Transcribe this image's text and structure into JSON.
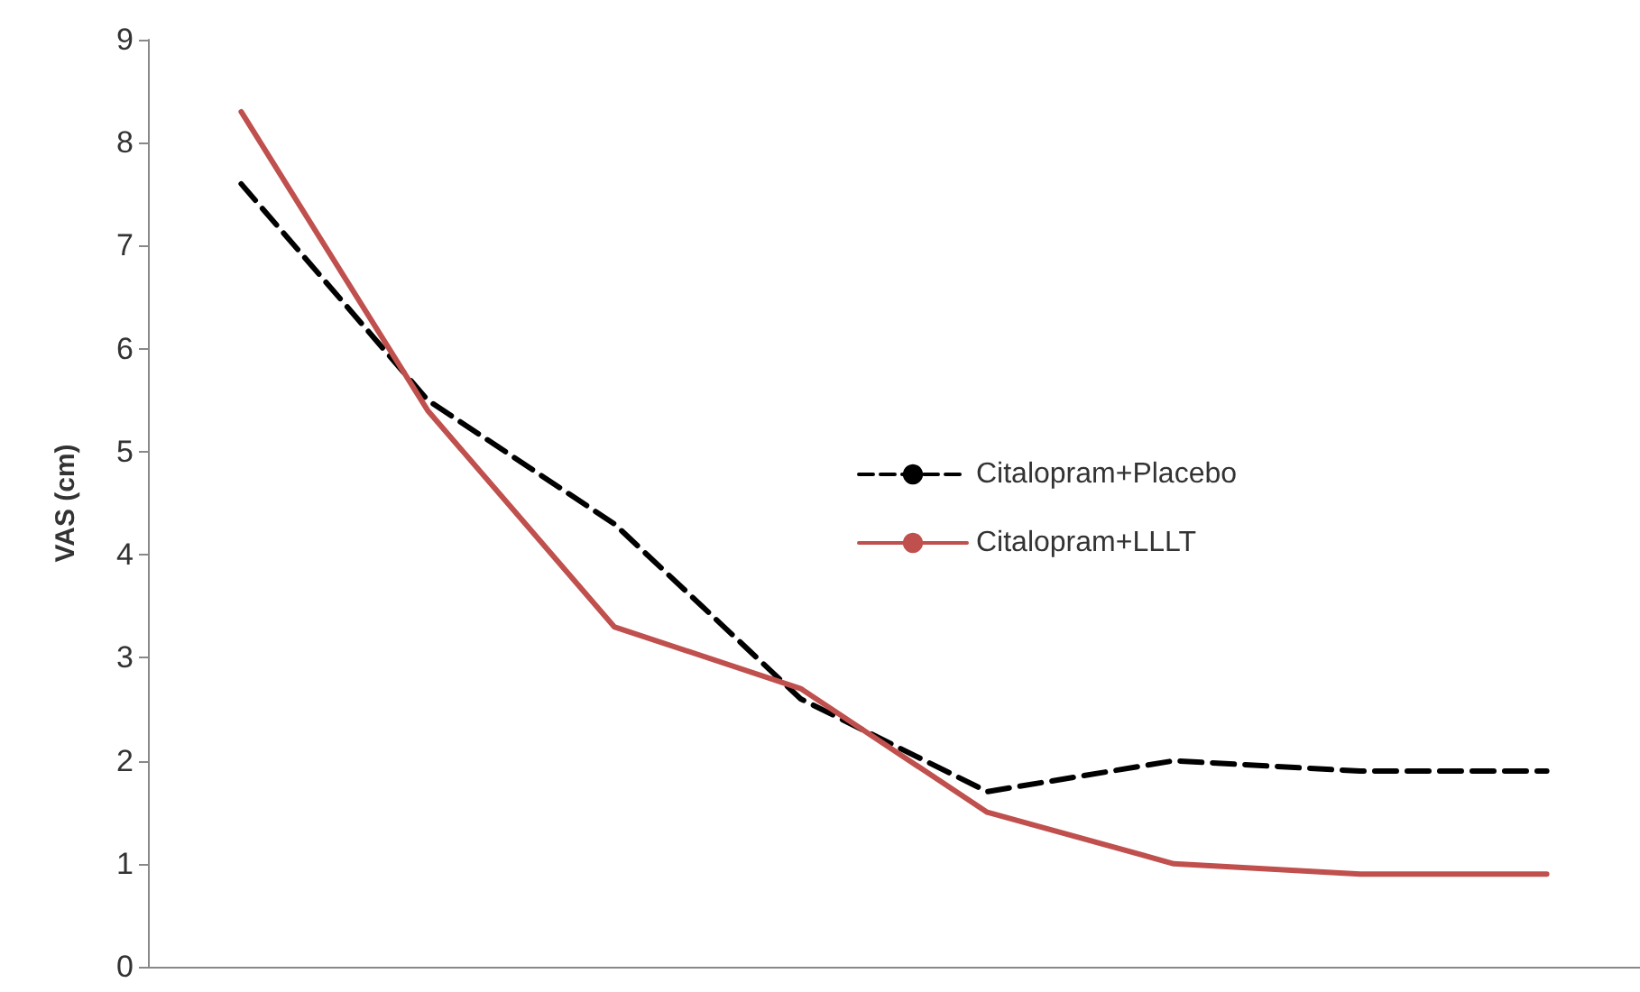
{
  "chart_data": {
    "type": "line",
    "ylabel": "VAS (cm)",
    "categories": [
      null,
      null,
      null,
      null,
      null,
      null,
      null,
      null
    ],
    "series": [
      {
        "name": "Citalopram+Placebo",
        "color": "#000000",
        "line_style": "dashed",
        "values": [
          7.6,
          5.5,
          4.3,
          2.6,
          1.7,
          2.0,
          1.9,
          1.9
        ]
      },
      {
        "name": "Citalopram+LLLT",
        "color": "#c0504d",
        "line_style": "solid",
        "values": [
          8.3,
          5.4,
          3.3,
          2.7,
          1.5,
          1.0,
          0.9,
          0.9
        ]
      }
    ],
    "ylim": [
      0,
      9
    ],
    "yticks": [
      0,
      1,
      2,
      3,
      4,
      5,
      6,
      7,
      8,
      9
    ],
    "grid": false,
    "legend": "right",
    "marker": "none"
  }
}
